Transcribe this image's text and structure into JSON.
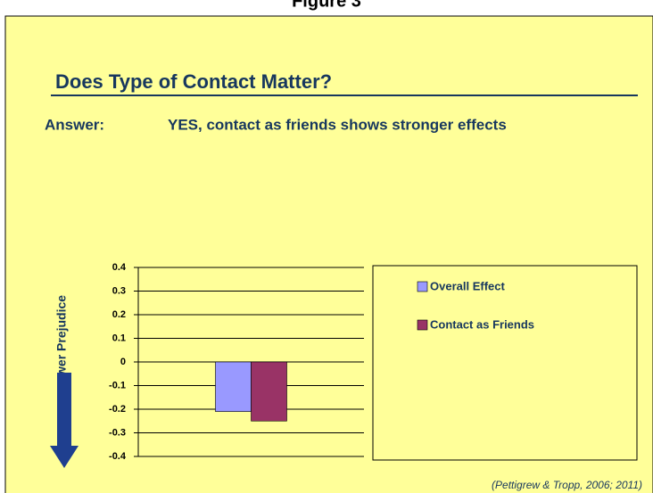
{
  "header": {
    "figure": "Figure 3",
    "title": "Does Type of Contact Matter?",
    "answer_label": "Answer:",
    "answer": "YES, contact as friends shows stronger effects"
  },
  "chart_data": {
    "type": "bar",
    "y_label": "Lower Prejudice",
    "source": "(Pettigrew & Tropp, 2006; 2011)",
    "categories": [
      null
    ],
    "series": [
      {
        "name": "Overall Effect",
        "color": "#9999ff",
        "values": [
          -0.21
        ]
      },
      {
        "name": "Contact as Friends",
        "color": "#993366",
        "values": [
          -0.25
        ]
      }
    ],
    "ylim": [
      -0.4,
      0.4
    ],
    "yticks": [
      0.4,
      0.3,
      0.2,
      0.1,
      0,
      -0.1,
      -0.2,
      -0.3,
      -0.4
    ],
    "grid": true,
    "legend": "right"
  }
}
